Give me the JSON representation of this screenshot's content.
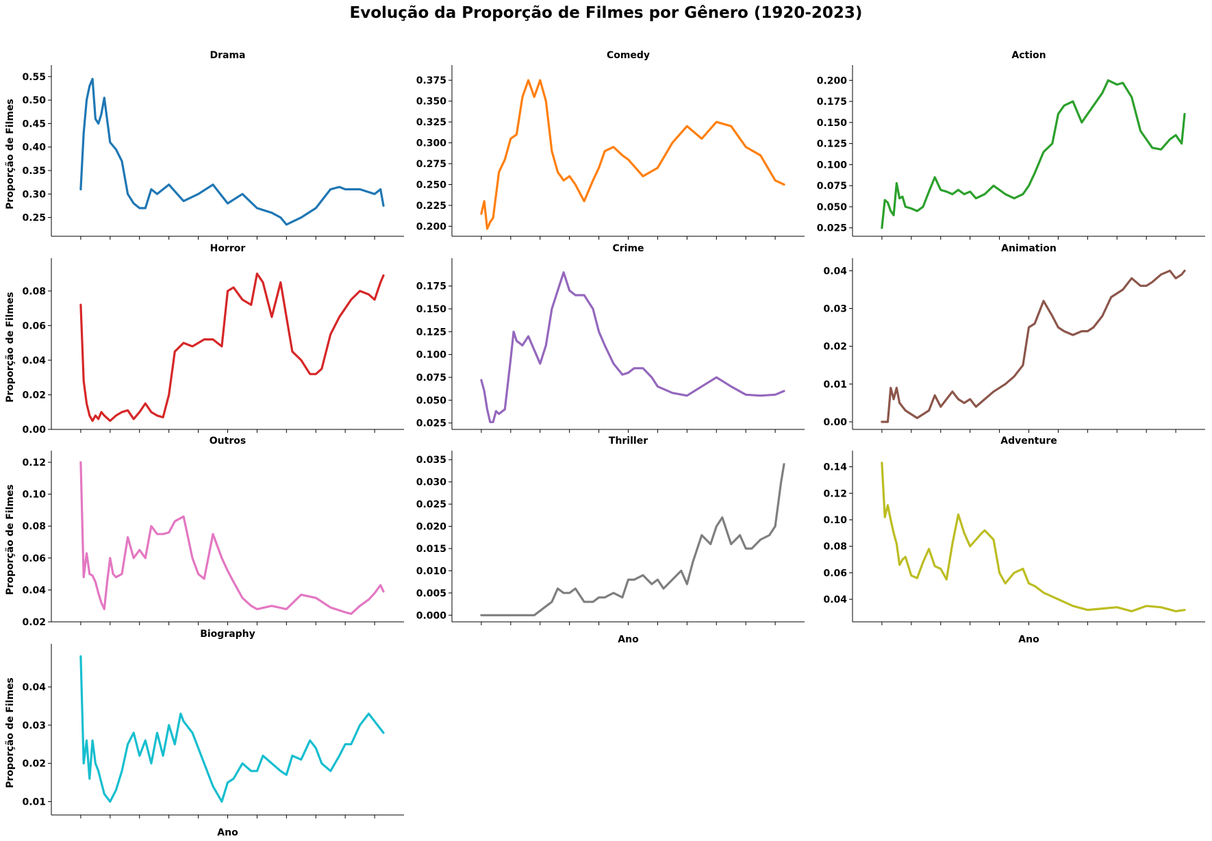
{
  "figure": {
    "title": "Evolução da Proporção de Filmes por Gênero (1920-2023)"
  },
  "chart_data": [
    {
      "type": "line",
      "title": "Drama",
      "xlabel": "",
      "ylabel": "Proporção de Filmes",
      "color": "#1f77b4",
      "xlim": [
        1910,
        2030
      ],
      "ylim": [
        0.21,
        0.56
      ],
      "yticks": [
        0.25,
        0.3,
        0.35,
        0.4,
        0.45,
        0.5,
        0.55
      ],
      "ytick_labels": [
        "0.25",
        "0.30",
        "0.35",
        "0.40",
        "0.45",
        "0.50",
        "0.55"
      ],
      "x": [
        1920,
        1921,
        1922,
        1923,
        1924,
        1925,
        1926,
        1927,
        1928,
        1930,
        1932,
        1934,
        1936,
        1938,
        1940,
        1942,
        1944,
        1946,
        1948,
        1950,
        1955,
        1960,
        1965,
        1970,
        1975,
        1980,
        1985,
        1988,
        1990,
        1995,
        2000,
        2005,
        2008,
        2010,
        2015,
        2020,
        2022,
        2023
      ],
      "y": [
        0.31,
        0.43,
        0.5,
        0.53,
        0.545,
        0.46,
        0.45,
        0.47,
        0.505,
        0.41,
        0.395,
        0.37,
        0.3,
        0.28,
        0.27,
        0.27,
        0.31,
        0.3,
        0.31,
        0.32,
        0.285,
        0.3,
        0.32,
        0.28,
        0.3,
        0.27,
        0.26,
        0.25,
        0.235,
        0.25,
        0.27,
        0.31,
        0.315,
        0.31,
        0.31,
        0.3,
        0.31,
        0.275
      ],
      "grid": false,
      "legend": "none"
    },
    {
      "type": "line",
      "title": "Comedy",
      "xlabel": "",
      "ylabel": "",
      "color": "#ff7f0e",
      "xlim": [
        1910,
        2030
      ],
      "ylim": [
        0.188,
        0.385
      ],
      "yticks": [
        0.2,
        0.225,
        0.25,
        0.275,
        0.3,
        0.325,
        0.35,
        0.375
      ],
      "ytick_labels": [
        "0.200",
        "0.225",
        "0.250",
        "0.275",
        "0.300",
        "0.325",
        "0.350",
        "0.375"
      ],
      "x": [
        1920,
        1921,
        1922,
        1923,
        1924,
        1926,
        1928,
        1930,
        1932,
        1934,
        1936,
        1938,
        1940,
        1942,
        1944,
        1946,
        1948,
        1950,
        1952,
        1955,
        1958,
        1960,
        1962,
        1965,
        1968,
        1970,
        1975,
        1980,
        1985,
        1990,
        1995,
        2000,
        2005,
        2010,
        2015,
        2020,
        2023
      ],
      "y": [
        0.215,
        0.23,
        0.197,
        0.205,
        0.21,
        0.265,
        0.28,
        0.305,
        0.31,
        0.355,
        0.375,
        0.355,
        0.375,
        0.35,
        0.29,
        0.265,
        0.255,
        0.26,
        0.25,
        0.23,
        0.255,
        0.27,
        0.29,
        0.295,
        0.285,
        0.28,
        0.26,
        0.27,
        0.3,
        0.32,
        0.305,
        0.325,
        0.32,
        0.295,
        0.285,
        0.255,
        0.25
      ],
      "grid": false,
      "legend": "none"
    },
    {
      "type": "line",
      "title": "Action",
      "xlabel": "",
      "ylabel": "",
      "color": "#2ca02c",
      "xlim": [
        1910,
        2030
      ],
      "ylim": [
        0.015,
        0.21
      ],
      "yticks": [
        0.025,
        0.05,
        0.075,
        0.1,
        0.125,
        0.15,
        0.175,
        0.2
      ],
      "ytick_labels": [
        "0.025",
        "0.050",
        "0.075",
        "0.100",
        "0.125",
        "0.150",
        "0.175",
        "0.200"
      ],
      "x": [
        1920,
        1921,
        1922,
        1923,
        1924,
        1925,
        1926,
        1927,
        1928,
        1930,
        1932,
        1934,
        1936,
        1938,
        1940,
        1942,
        1944,
        1946,
        1948,
        1950,
        1952,
        1955,
        1958,
        1960,
        1962,
        1965,
        1968,
        1970,
        1972,
        1975,
        1978,
        1980,
        1982,
        1985,
        1988,
        1990,
        1992,
        1995,
        1997,
        2000,
        2002,
        2005,
        2008,
        2010,
        2012,
        2015,
        2018,
        2020,
        2022,
        2023
      ],
      "y": [
        0.025,
        0.058,
        0.055,
        0.045,
        0.04,
        0.078,
        0.06,
        0.062,
        0.05,
        0.048,
        0.045,
        0.05,
        0.068,
        0.085,
        0.07,
        0.068,
        0.065,
        0.07,
        0.065,
        0.068,
        0.06,
        0.065,
        0.075,
        0.07,
        0.065,
        0.06,
        0.065,
        0.075,
        0.09,
        0.115,
        0.125,
        0.16,
        0.17,
        0.175,
        0.15,
        0.16,
        0.17,
        0.185,
        0.2,
        0.195,
        0.197,
        0.18,
        0.14,
        0.13,
        0.12,
        0.118,
        0.13,
        0.135,
        0.125,
        0.16
      ],
      "grid": false,
      "legend": "none"
    },
    {
      "type": "line",
      "title": "Horror",
      "xlabel": "",
      "ylabel": "Proporção de Filmes",
      "color": "#d62728",
      "xlim": [
        1910,
        2030
      ],
      "ylim": [
        0.0,
        0.095
      ],
      "yticks": [
        0.0,
        0.02,
        0.04,
        0.06,
        0.08
      ],
      "ytick_labels": [
        "0.00",
        "0.02",
        "0.04",
        "0.06",
        "0.08"
      ],
      "x": [
        1920,
        1921,
        1922,
        1923,
        1924,
        1925,
        1926,
        1927,
        1928,
        1930,
        1932,
        1934,
        1936,
        1938,
        1940,
        1942,
        1944,
        1946,
        1948,
        1950,
        1952,
        1955,
        1958,
        1960,
        1962,
        1965,
        1968,
        1970,
        1972,
        1975,
        1978,
        1980,
        1982,
        1985,
        1988,
        1990,
        1992,
        1995,
        1998,
        2000,
        2002,
        2005,
        2008,
        2010,
        2012,
        2015,
        2018,
        2020,
        2022,
        2023
      ],
      "y": [
        0.072,
        0.028,
        0.015,
        0.008,
        0.005,
        0.008,
        0.006,
        0.01,
        0.008,
        0.005,
        0.008,
        0.01,
        0.011,
        0.006,
        0.01,
        0.015,
        0.01,
        0.008,
        0.007,
        0.02,
        0.045,
        0.05,
        0.048,
        0.05,
        0.052,
        0.052,
        0.048,
        0.08,
        0.082,
        0.075,
        0.072,
        0.09,
        0.085,
        0.065,
        0.085,
        0.065,
        0.045,
        0.04,
        0.032,
        0.032,
        0.035,
        0.055,
        0.065,
        0.07,
        0.075,
        0.08,
        0.078,
        0.075,
        0.085,
        0.089
      ],
      "grid": false,
      "legend": "none"
    },
    {
      "type": "line",
      "title": "Crime",
      "xlabel": "",
      "ylabel": "",
      "color": "#9467bd",
      "xlim": [
        1910,
        2030
      ],
      "ylim": [
        0.018,
        0.198
      ],
      "yticks": [
        0.025,
        0.05,
        0.075,
        0.1,
        0.125,
        0.15,
        0.175
      ],
      "ytick_labels": [
        "0.025",
        "0.050",
        "0.075",
        "0.100",
        "0.125",
        "0.150",
        "0.175"
      ],
      "x": [
        1920,
        1921,
        1922,
        1923,
        1924,
        1925,
        1926,
        1928,
        1930,
        1931,
        1932,
        1934,
        1936,
        1938,
        1940,
        1942,
        1944,
        1946,
        1948,
        1950,
        1952,
        1954,
        1955,
        1958,
        1960,
        1962,
        1965,
        1968,
        1970,
        1972,
        1975,
        1978,
        1980,
        1985,
        1990,
        1995,
        2000,
        2005,
        2010,
        2015,
        2020,
        2023
      ],
      "y": [
        0.072,
        0.06,
        0.04,
        0.026,
        0.026,
        0.038,
        0.035,
        0.04,
        0.095,
        0.125,
        0.115,
        0.11,
        0.12,
        0.105,
        0.09,
        0.11,
        0.15,
        0.17,
        0.19,
        0.17,
        0.165,
        0.165,
        0.165,
        0.15,
        0.125,
        0.11,
        0.09,
        0.078,
        0.08,
        0.085,
        0.085,
        0.075,
        0.065,
        0.058,
        0.055,
        0.065,
        0.075,
        0.065,
        0.056,
        0.055,
        0.056,
        0.06
      ],
      "grid": false,
      "legend": "none"
    },
    {
      "type": "line",
      "title": "Animation",
      "xlabel": "",
      "ylabel": "",
      "color": "#8c564b",
      "xlim": [
        1910,
        2030
      ],
      "ylim": [
        -0.002,
        0.0415
      ],
      "yticks": [
        0.0,
        0.01,
        0.02,
        0.03,
        0.04
      ],
      "ytick_labels": [
        "0.00",
        "0.01",
        "0.02",
        "0.03",
        "0.04"
      ],
      "x": [
        1920,
        1922,
        1923,
        1924,
        1925,
        1926,
        1927,
        1928,
        1930,
        1932,
        1934,
        1936,
        1938,
        1940,
        1942,
        1944,
        1946,
        1948,
        1950,
        1952,
        1955,
        1958,
        1960,
        1962,
        1965,
        1968,
        1970,
        1972,
        1975,
        1978,
        1980,
        1982,
        1985,
        1988,
        1990,
        1992,
        1995,
        1998,
        2000,
        2002,
        2005,
        2008,
        2010,
        2012,
        2015,
        2018,
        2020,
        2022,
        2023
      ],
      "y": [
        0.0,
        0.0,
        0.009,
        0.006,
        0.009,
        0.005,
        0.004,
        0.003,
        0.002,
        0.001,
        0.002,
        0.003,
        0.007,
        0.004,
        0.006,
        0.008,
        0.006,
        0.005,
        0.006,
        0.004,
        0.006,
        0.008,
        0.009,
        0.01,
        0.012,
        0.015,
        0.025,
        0.026,
        0.032,
        0.028,
        0.025,
        0.024,
        0.023,
        0.024,
        0.024,
        0.025,
        0.028,
        0.033,
        0.034,
        0.035,
        0.038,
        0.036,
        0.036,
        0.037,
        0.039,
        0.04,
        0.038,
        0.039,
        0.04
      ],
      "grid": false,
      "legend": "none"
    },
    {
      "type": "line",
      "title": "Outros",
      "xlabel": "",
      "ylabel": "Proporção de Filmes",
      "color": "#e377c2",
      "xlim": [
        1910,
        2030
      ],
      "ylim": [
        0.02,
        0.123
      ],
      "yticks": [
        0.02,
        0.04,
        0.06,
        0.08,
        0.1,
        0.12
      ],
      "ytick_labels": [
        "0.02",
        "0.04",
        "0.06",
        "0.08",
        "0.10",
        "0.12"
      ],
      "x": [
        1920,
        1921,
        1922,
        1923,
        1924,
        1925,
        1926,
        1927,
        1928,
        1929,
        1930,
        1931,
        1932,
        1934,
        1936,
        1938,
        1940,
        1942,
        1944,
        1946,
        1948,
        1950,
        1952,
        1955,
        1958,
        1960,
        1962,
        1965,
        1968,
        1970,
        1972,
        1975,
        1978,
        1980,
        1985,
        1990,
        1995,
        2000,
        2005,
        2010,
        2012,
        2015,
        2018,
        2020,
        2022,
        2023
      ],
      "y": [
        0.12,
        0.048,
        0.063,
        0.05,
        0.049,
        0.045,
        0.038,
        0.032,
        0.028,
        0.045,
        0.06,
        0.05,
        0.048,
        0.05,
        0.073,
        0.06,
        0.065,
        0.06,
        0.08,
        0.075,
        0.075,
        0.076,
        0.083,
        0.086,
        0.06,
        0.05,
        0.047,
        0.075,
        0.06,
        0.052,
        0.045,
        0.035,
        0.03,
        0.028,
        0.03,
        0.028,
        0.037,
        0.035,
        0.029,
        0.026,
        0.025,
        0.03,
        0.034,
        0.038,
        0.043,
        0.039
      ],
      "grid": false,
      "legend": "none"
    },
    {
      "type": "line",
      "title": "Thriller",
      "xlabel": "Ano",
      "ylabel": "",
      "color": "#7f7f7f",
      "xlim": [
        1910,
        2030
      ],
      "ylim": [
        -0.0015,
        0.0355
      ],
      "yticks": [
        0.0,
        0.005,
        0.01,
        0.015,
        0.02,
        0.025,
        0.03,
        0.035
      ],
      "ytick_labels": [
        "0.000",
        "0.005",
        "0.010",
        "0.015",
        "0.020",
        "0.025",
        "0.030",
        "0.035"
      ],
      "x": [
        1920,
        1925,
        1930,
        1935,
        1938,
        1940,
        1942,
        1944,
        1946,
        1948,
        1950,
        1952,
        1955,
        1958,
        1960,
        1962,
        1965,
        1968,
        1970,
        1972,
        1975,
        1978,
        1980,
        1982,
        1985,
        1988,
        1990,
        1992,
        1995,
        1998,
        2000,
        2002,
        2005,
        2008,
        2010,
        2012,
        2015,
        2018,
        2020,
        2022,
        2023
      ],
      "y": [
        0.0,
        0.0,
        0.0,
        0.0,
        0.0,
        0.001,
        0.002,
        0.003,
        0.006,
        0.005,
        0.005,
        0.006,
        0.003,
        0.003,
        0.004,
        0.004,
        0.005,
        0.004,
        0.008,
        0.008,
        0.009,
        0.007,
        0.008,
        0.006,
        0.008,
        0.01,
        0.007,
        0.012,
        0.018,
        0.016,
        0.02,
        0.022,
        0.016,
        0.018,
        0.015,
        0.015,
        0.017,
        0.018,
        0.02,
        0.03,
        0.034
      ],
      "grid": false,
      "legend": "none"
    },
    {
      "type": "line",
      "title": "Adventure",
      "xlabel": "Ano",
      "ylabel": "",
      "color": "#bcbd22",
      "xlim": [
        1910,
        2030
      ],
      "ylim": [
        0.023,
        0.147
      ],
      "yticks": [
        0.04,
        0.06,
        0.08,
        0.1,
        0.12,
        0.14
      ],
      "ytick_labels": [
        "0.04",
        "0.06",
        "0.08",
        "0.10",
        "0.12",
        "0.14"
      ],
      "x": [
        1920,
        1921,
        1922,
        1923,
        1924,
        1925,
        1926,
        1927,
        1928,
        1930,
        1932,
        1934,
        1936,
        1938,
        1940,
        1942,
        1944,
        1946,
        1948,
        1950,
        1952,
        1954,
        1955,
        1958,
        1960,
        1962,
        1965,
        1968,
        1970,
        1972,
        1975,
        1978,
        1980,
        1985,
        1990,
        1995,
        2000,
        2005,
        2010,
        2015,
        2020,
        2023
      ],
      "y": [
        0.143,
        0.102,
        0.111,
        0.1,
        0.09,
        0.082,
        0.066,
        0.07,
        0.072,
        0.058,
        0.056,
        0.068,
        0.078,
        0.065,
        0.063,
        0.055,
        0.082,
        0.104,
        0.09,
        0.08,
        0.085,
        0.09,
        0.092,
        0.085,
        0.06,
        0.052,
        0.06,
        0.063,
        0.052,
        0.05,
        0.045,
        0.042,
        0.04,
        0.035,
        0.032,
        0.033,
        0.034,
        0.031,
        0.035,
        0.034,
        0.031,
        0.032
      ],
      "grid": false,
      "legend": "none"
    },
    {
      "type": "line",
      "title": "Biography",
      "xlabel": "Ano",
      "ylabel": "Proporção de Filmes",
      "color": "#17becf",
      "xlim": [
        1910,
        2030
      ],
      "ylim": [
        0.0065,
        0.0495
      ],
      "yticks": [
        0.01,
        0.02,
        0.03,
        0.04
      ],
      "ytick_labels": [
        "0.01",
        "0.02",
        "0.03",
        "0.04"
      ],
      "x": [
        1920,
        1921,
        1922,
        1923,
        1924,
        1925,
        1926,
        1927,
        1928,
        1930,
        1932,
        1934,
        1936,
        1938,
        1940,
        1942,
        1944,
        1946,
        1948,
        1950,
        1952,
        1954,
        1955,
        1958,
        1960,
        1962,
        1965,
        1968,
        1970,
        1972,
        1975,
        1978,
        1980,
        1982,
        1985,
        1988,
        1990,
        1992,
        1995,
        1998,
        2000,
        2002,
        2005,
        2008,
        2010,
        2012,
        2015,
        2018,
        2020,
        2022,
        2023
      ],
      "y": [
        0.048,
        0.02,
        0.026,
        0.016,
        0.026,
        0.02,
        0.018,
        0.015,
        0.012,
        0.01,
        0.013,
        0.018,
        0.025,
        0.028,
        0.022,
        0.026,
        0.02,
        0.028,
        0.022,
        0.03,
        0.025,
        0.033,
        0.031,
        0.028,
        0.024,
        0.02,
        0.014,
        0.01,
        0.015,
        0.016,
        0.02,
        0.018,
        0.018,
        0.022,
        0.02,
        0.018,
        0.017,
        0.022,
        0.021,
        0.026,
        0.024,
        0.02,
        0.018,
        0.022,
        0.025,
        0.025,
        0.03,
        0.033,
        0.031,
        0.029,
        0.028
      ],
      "grid": false,
      "legend": "none"
    }
  ]
}
